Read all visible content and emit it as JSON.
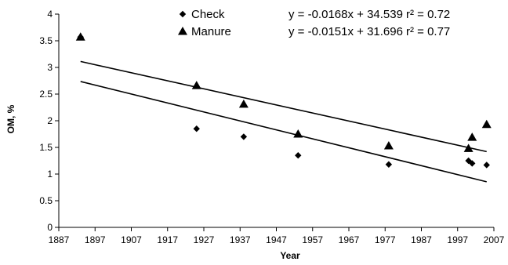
{
  "chart_data": {
    "type": "scatter",
    "xlabel": "Year",
    "ylabel": "OM, %",
    "xlim": [
      1887,
      2007
    ],
    "ylim": [
      0,
      4
    ],
    "xticks": [
      "1887",
      "1897",
      "1907",
      "1917",
      "1927",
      "1937",
      "1947",
      "1957",
      "1967",
      "1977",
      "1987",
      "1997",
      "2007"
    ],
    "yticks": [
      "0",
      "0.5",
      "1",
      "1.5",
      "2",
      "2.5",
      "3",
      "3.5",
      "4"
    ],
    "grid": false,
    "legend_position": "top-center",
    "series": [
      {
        "name": "Check",
        "marker": "diamond",
        "color": "#000000",
        "points": [
          {
            "x": 1893,
            "y": 3.57
          },
          {
            "x": 1925,
            "y": 1.85
          },
          {
            "x": 1938,
            "y": 1.7
          },
          {
            "x": 1953,
            "y": 1.35
          },
          {
            "x": 1978,
            "y": 1.18
          },
          {
            "x": 2000,
            "y": 1.25
          },
          {
            "x": 2001,
            "y": 1.2
          },
          {
            "x": 2005,
            "y": 1.17
          }
        ],
        "trendline": {
          "slope": -0.0168,
          "intercept": 34.539,
          "from": 1893,
          "to": 2005
        },
        "equation": "y = -0.0168x + 34.539",
        "r2_label": "r² = 0.72"
      },
      {
        "name": "Manure",
        "marker": "triangle",
        "color": "#000000",
        "points": [
          {
            "x": 1893,
            "y": 3.57
          },
          {
            "x": 1925,
            "y": 2.66
          },
          {
            "x": 1938,
            "y": 2.31
          },
          {
            "x": 1953,
            "y": 1.75
          },
          {
            "x": 1978,
            "y": 1.53
          },
          {
            "x": 2000,
            "y": 1.48
          },
          {
            "x": 2001,
            "y": 1.69
          },
          {
            "x": 2005,
            "y": 1.93
          }
        ],
        "trendline": {
          "slope": -0.0151,
          "intercept": 31.696,
          "from": 1893,
          "to": 2005
        },
        "equation": "y = -0.0151x + 31.696",
        "r2_label": "r² = 0.77"
      }
    ]
  }
}
